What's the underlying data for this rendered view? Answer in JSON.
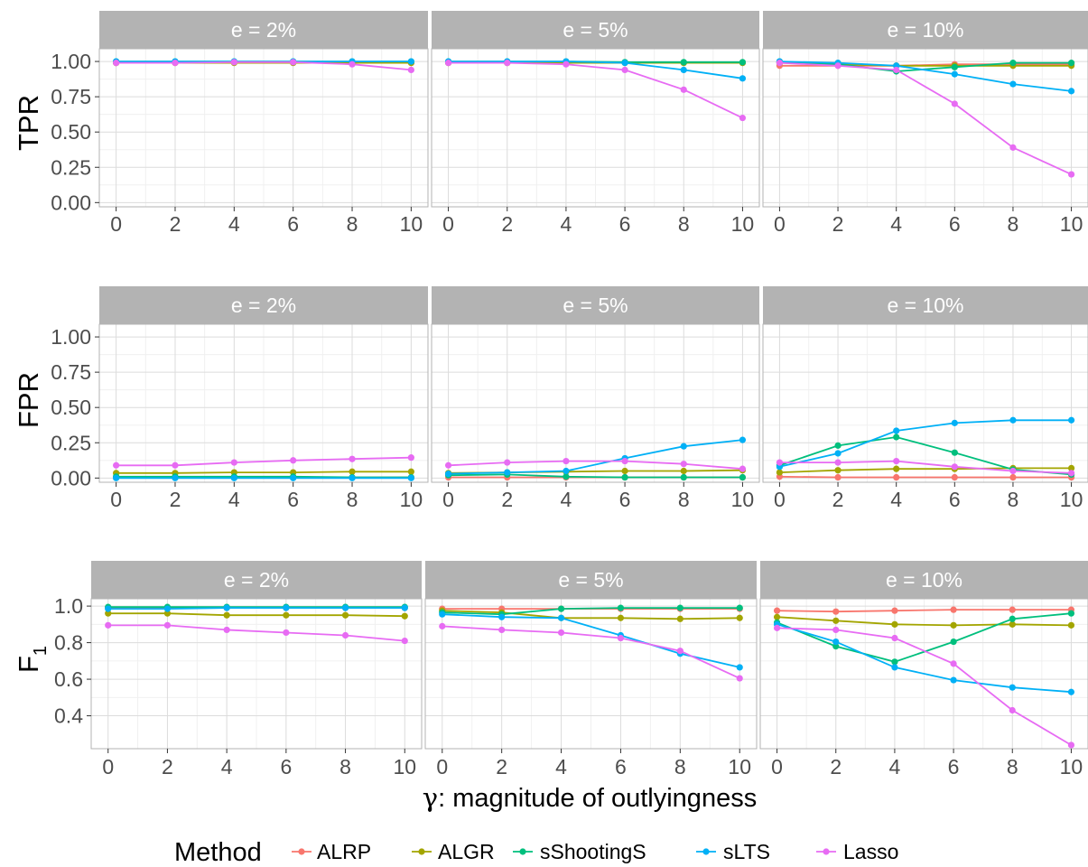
{
  "chart_data": {
    "type": "line",
    "x_axis_label_greek": "γ",
    "x_axis_label_rest": ": magnitude of outlyingness",
    "x": [
      0,
      2,
      4,
      6,
      8,
      10
    ],
    "facets": [
      "e = 2%",
      "e = 5%",
      "e = 10%"
    ],
    "legend": {
      "title": "Method",
      "position": "bottom",
      "entries": [
        "ALRP",
        "ALGR",
        "sShootingS",
        "sLTS",
        "Lasso"
      ]
    },
    "colors": {
      "ALRP": "#F8766D",
      "ALGR": "#A3A500",
      "sShootingS": "#00BF7D",
      "sLTS": "#00B0F6",
      "Lasso": "#E76BF3"
    },
    "grid": true,
    "rows": [
      {
        "metric": "TPR",
        "ylabel": "TPR",
        "ylim": [
          -0.03,
          1.09
        ],
        "yticks": [
          0,
          0.25,
          0.5,
          0.75,
          1
        ],
        "ytick_labels": [
          "0.00",
          "0.25",
          "0.50",
          "0.75",
          "1.00"
        ],
        "panels": [
          {
            "facet": "e = 2%",
            "series": [
              {
                "name": "ALRP",
                "values": [
                  0.99,
                  0.99,
                  0.995,
                  0.995,
                  0.99,
                  0.99
                ]
              },
              {
                "name": "ALGR",
                "values": [
                  0.99,
                  0.99,
                  0.99,
                  0.99,
                  0.99,
                  0.99
                ]
              },
              {
                "name": "sShootingS",
                "values": [
                  1.0,
                  1.0,
                  1.0,
                  1.0,
                  1.0,
                  1.0
                ]
              },
              {
                "name": "sLTS",
                "values": [
                  1.0,
                  1.0,
                  1.0,
                  1.0,
                  1.0,
                  1.0
                ]
              },
              {
                "name": "Lasso",
                "values": [
                  0.99,
                  0.99,
                  0.995,
                  0.995,
                  0.98,
                  0.94
                ]
              }
            ]
          },
          {
            "facet": "e = 5%",
            "series": [
              {
                "name": "ALRP",
                "values": [
                  0.99,
                  0.99,
                  0.99,
                  0.99,
                  0.99,
                  0.99
                ]
              },
              {
                "name": "ALGR",
                "values": [
                  0.99,
                  0.99,
                  0.99,
                  0.99,
                  0.99,
                  0.99
                ]
              },
              {
                "name": "sShootingS",
                "values": [
                  1.0,
                  1.0,
                  1.0,
                  0.995,
                  0.995,
                  0.995
                ]
              },
              {
                "name": "sLTS",
                "values": [
                  1.0,
                  1.0,
                  1.0,
                  0.99,
                  0.94,
                  0.88
                ]
              },
              {
                "name": "Lasso",
                "values": [
                  0.99,
                  0.99,
                  0.98,
                  0.94,
                  0.8,
                  0.6
                ]
              }
            ]
          },
          {
            "facet": "e = 10%",
            "series": [
              {
                "name": "ALRP",
                "values": [
                  0.97,
                  0.97,
                  0.97,
                  0.98,
                  0.98,
                  0.98
                ]
              },
              {
                "name": "ALGR",
                "values": [
                  0.99,
                  0.98,
                  0.97,
                  0.97,
                  0.97,
                  0.97
                ]
              },
              {
                "name": "sShootingS",
                "values": [
                  1.0,
                  0.98,
                  0.93,
                  0.96,
                  0.99,
                  0.99
                ]
              },
              {
                "name": "sLTS",
                "values": [
                  1.0,
                  0.99,
                  0.97,
                  0.91,
                  0.84,
                  0.79
                ]
              },
              {
                "name": "Lasso",
                "values": [
                  0.99,
                  0.97,
                  0.94,
                  0.7,
                  0.39,
                  0.2
                ]
              }
            ]
          }
        ]
      },
      {
        "metric": "FPR",
        "ylabel": "FPR",
        "ylim": [
          -0.03,
          1.09
        ],
        "yticks": [
          0,
          0.25,
          0.5,
          0.75,
          1
        ],
        "ytick_labels": [
          "0.00",
          "0.25",
          "0.50",
          "0.75",
          "1.00"
        ],
        "panels": [
          {
            "facet": "e = 2%",
            "series": [
              {
                "name": "ALRP",
                "values": [
                  0.005,
                  0.005,
                  0.005,
                  0.005,
                  0.005,
                  0.005
                ]
              },
              {
                "name": "ALGR",
                "values": [
                  0.035,
                  0.035,
                  0.04,
                  0.04,
                  0.045,
                  0.045
                ]
              },
              {
                "name": "sShootingS",
                "values": [
                  0.01,
                  0.01,
                  0.01,
                  0.01,
                  0.005,
                  0.005
                ]
              },
              {
                "name": "sLTS",
                "values": [
                  0.0,
                  0.0,
                  0.0,
                  0.0,
                  0.0,
                  0.0
                ]
              },
              {
                "name": "Lasso",
                "values": [
                  0.09,
                  0.09,
                  0.11,
                  0.125,
                  0.135,
                  0.145
                ]
              }
            ]
          },
          {
            "facet": "e = 5%",
            "series": [
              {
                "name": "ALRP",
                "values": [
                  0.005,
                  0.005,
                  0.005,
                  0.005,
                  0.005,
                  0.005
                ]
              },
              {
                "name": "ALGR",
                "values": [
                  0.035,
                  0.04,
                  0.045,
                  0.05,
                  0.05,
                  0.055
                ]
              },
              {
                "name": "sShootingS",
                "values": [
                  0.02,
                  0.025,
                  0.01,
                  0.005,
                  0.005,
                  0.005
                ]
              },
              {
                "name": "sLTS",
                "values": [
                  0.03,
                  0.04,
                  0.05,
                  0.14,
                  0.225,
                  0.27
                ]
              },
              {
                "name": "Lasso",
                "values": [
                  0.09,
                  0.11,
                  0.12,
                  0.12,
                  0.1,
                  0.065
                ]
              }
            ]
          },
          {
            "facet": "e = 10%",
            "series": [
              {
                "name": "ALRP",
                "values": [
                  0.01,
                  0.005,
                  0.005,
                  0.005,
                  0.005,
                  0.005
                ]
              },
              {
                "name": "ALGR",
                "values": [
                  0.04,
                  0.055,
                  0.065,
                  0.065,
                  0.07,
                  0.07
                ]
              },
              {
                "name": "sShootingS",
                "values": [
                  0.09,
                  0.23,
                  0.29,
                  0.18,
                  0.06,
                  0.025
                ]
              },
              {
                "name": "sLTS",
                "values": [
                  0.08,
                  0.175,
                  0.335,
                  0.39,
                  0.41,
                  0.41
                ]
              },
              {
                "name": "Lasso",
                "values": [
                  0.11,
                  0.11,
                  0.12,
                  0.08,
                  0.05,
                  0.035
                ]
              }
            ]
          }
        ]
      },
      {
        "metric": "F1",
        "ylabel_main": "F",
        "ylabel_sub": "1",
        "ylim": [
          0.22,
          1.04
        ],
        "yticks": [
          0.4,
          0.6,
          0.8,
          1.0
        ],
        "ytick_labels": [
          "0.4",
          "0.6",
          "0.8",
          "1.0"
        ],
        "panels": [
          {
            "facet": "e = 2%",
            "series": [
              {
                "name": "ALRP",
                "values": [
                  0.99,
                  0.99,
                  0.99,
                  0.99,
                  0.99,
                  0.99
                ]
              },
              {
                "name": "ALGR",
                "values": [
                  0.96,
                  0.96,
                  0.95,
                  0.95,
                  0.95,
                  0.945
                ]
              },
              {
                "name": "sShootingS",
                "values": [
                  0.995,
                  0.995,
                  0.995,
                  0.995,
                  0.995,
                  0.995
                ]
              },
              {
                "name": "sLTS",
                "values": [
                  0.985,
                  0.985,
                  0.99,
                  0.99,
                  0.99,
                  0.99
                ]
              },
              {
                "name": "Lasso",
                "values": [
                  0.895,
                  0.895,
                  0.87,
                  0.855,
                  0.84,
                  0.81
                ]
              }
            ]
          },
          {
            "facet": "e = 5%",
            "series": [
              {
                "name": "ALRP",
                "values": [
                  0.985,
                  0.985,
                  0.985,
                  0.985,
                  0.985,
                  0.985
                ]
              },
              {
                "name": "ALGR",
                "values": [
                  0.975,
                  0.965,
                  0.935,
                  0.935,
                  0.93,
                  0.935
                ]
              },
              {
                "name": "sShootingS",
                "values": [
                  0.965,
                  0.955,
                  0.985,
                  0.99,
                  0.99,
                  0.99
                ]
              },
              {
                "name": "sLTS",
                "values": [
                  0.955,
                  0.94,
                  0.935,
                  0.84,
                  0.74,
                  0.665
                ]
              },
              {
                "name": "Lasso",
                "values": [
                  0.89,
                  0.87,
                  0.855,
                  0.825,
                  0.755,
                  0.605
                ]
              }
            ]
          },
          {
            "facet": "e = 10%",
            "series": [
              {
                "name": "ALRP",
                "values": [
                  0.975,
                  0.97,
                  0.975,
                  0.98,
                  0.98,
                  0.98
                ]
              },
              {
                "name": "ALGR",
                "values": [
                  0.94,
                  0.92,
                  0.9,
                  0.895,
                  0.9,
                  0.895
                ]
              },
              {
                "name": "sShootingS",
                "values": [
                  0.91,
                  0.78,
                  0.695,
                  0.805,
                  0.93,
                  0.96
                ]
              },
              {
                "name": "sLTS",
                "values": [
                  0.9,
                  0.805,
                  0.665,
                  0.595,
                  0.555,
                  0.53
                ]
              },
              {
                "name": "Lasso",
                "values": [
                  0.88,
                  0.87,
                  0.825,
                  0.685,
                  0.43,
                  0.24
                ]
              }
            ]
          }
        ]
      }
    ]
  }
}
